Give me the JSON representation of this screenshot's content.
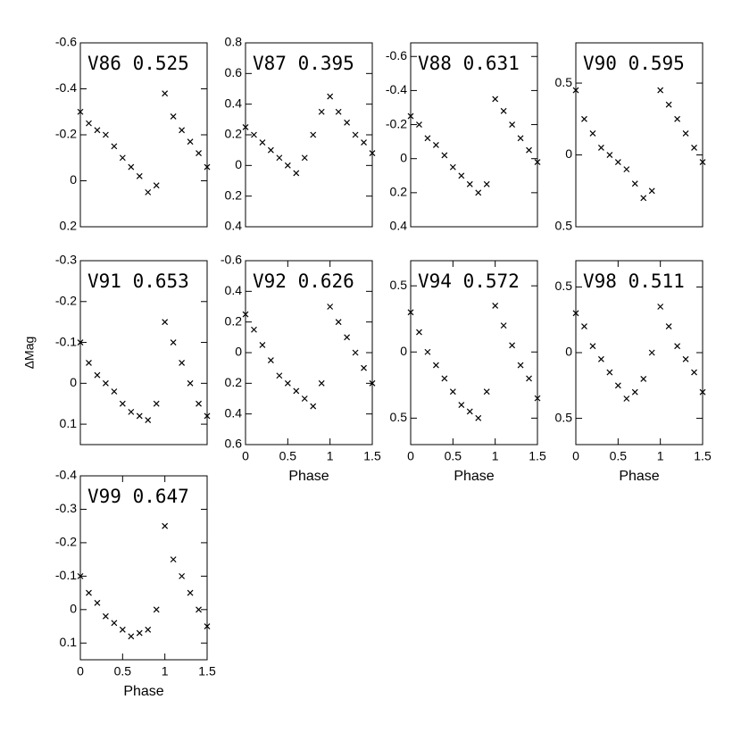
{
  "chart_data": [
    {
      "type": "scatter",
      "title": "V86 0.525",
      "marker_color": "#000000",
      "x": [
        0,
        0.1,
        0.2,
        0.3,
        0.4,
        0.5,
        0.6,
        0.7,
        0.8,
        0.9,
        1.0,
        1.1,
        1.2,
        1.3,
        1.4,
        1.5
      ],
      "values": [
        -0.3,
        -0.25,
        -0.22,
        -0.2,
        -0.15,
        -0.1,
        -0.06,
        -0.02,
        0.05,
        0.02,
        -0.38,
        -0.28,
        -0.22,
        -0.17,
        -0.12,
        -0.06
      ],
      "xlim": [
        0,
        1.5
      ],
      "ylim": [
        0.2,
        -0.6
      ],
      "yticks": [
        -0.6,
        -0.4,
        -0.2,
        0,
        0.2
      ]
    },
    {
      "type": "scatter",
      "title": "V87 0.395",
      "marker_color": "#000000",
      "x": [
        0,
        0.1,
        0.2,
        0.3,
        0.4,
        0.5,
        0.6,
        0.7,
        0.8,
        0.9,
        1.0,
        1.1,
        1.2,
        1.3,
        1.4,
        1.5
      ],
      "values": [
        -0.25,
        -0.2,
        -0.15,
        -0.1,
        -0.05,
        0,
        0.05,
        -0.05,
        -0.2,
        -0.35,
        -0.45,
        -0.35,
        -0.28,
        -0.2,
        -0.15,
        -0.08
      ],
      "xlim": [
        0,
        1.5
      ],
      "ylim": [
        0.4,
        -0.8
      ],
      "yticks": [
        {
          "value": -0.8,
          "label": "0.8"
        },
        {
          "value": -0.6,
          "label": "0.6"
        },
        {
          "value": -0.4,
          "label": "0.4"
        },
        {
          "value": -0.2,
          "label": "0.2"
        },
        0,
        0.2,
        0.4
      ]
    },
    {
      "type": "scatter",
      "title": "V88 0.631",
      "marker_color": "#000000",
      "x": [
        0,
        0.1,
        0.2,
        0.3,
        0.4,
        0.5,
        0.6,
        0.7,
        0.8,
        0.9,
        1.0,
        1.1,
        1.2,
        1.3,
        1.4,
        1.5
      ],
      "values": [
        -0.25,
        -0.2,
        -0.12,
        -0.08,
        -0.02,
        0.05,
        0.1,
        0.15,
        0.2,
        0.15,
        -0.35,
        -0.28,
        -0.2,
        -0.12,
        -0.05,
        0.02
      ],
      "xlim": [
        0,
        1.5
      ],
      "ylim": [
        0.4,
        -0.68
      ],
      "yticks": [
        -0.6,
        -0.4,
        -0.2,
        0,
        0.2,
        0.4
      ]
    },
    {
      "type": "scatter",
      "title": "V90 0.595",
      "marker_color": "#000000",
      "x": [
        0,
        0.1,
        0.2,
        0.3,
        0.4,
        0.5,
        0.6,
        0.7,
        0.8,
        0.9,
        1.0,
        1.1,
        1.2,
        1.3,
        1.4,
        1.5
      ],
      "values": [
        -0.45,
        -0.25,
        -0.15,
        -0.05,
        0,
        0.05,
        0.1,
        0.2,
        0.3,
        0.25,
        -0.45,
        -0.35,
        -0.25,
        -0.15,
        -0.05,
        0.05
      ],
      "xlim": [
        0,
        1.5
      ],
      "ylim": [
        0.5,
        -0.78
      ],
      "yticks": [
        {
          "value": -0.5,
          "label": "0.5"
        },
        0,
        0.5
      ]
    },
    {
      "type": "scatter",
      "title": "V91 0.653",
      "ylabel": "ΔMag",
      "marker_color": "#000000",
      "x": [
        0,
        0.1,
        0.2,
        0.3,
        0.4,
        0.5,
        0.6,
        0.7,
        0.8,
        0.9,
        1.0,
        1.1,
        1.2,
        1.3,
        1.4,
        1.5
      ],
      "values": [
        -0.1,
        -0.05,
        -0.02,
        0,
        0.02,
        0.05,
        0.07,
        0.08,
        0.09,
        0.05,
        -0.15,
        -0.1,
        -0.05,
        0,
        0.05,
        0.08
      ],
      "xlim": [
        0,
        1.5
      ],
      "ylim": [
        0.15,
        -0.3
      ],
      "yticks": [
        -0.3,
        -0.2,
        -0.1,
        0,
        0.1
      ]
    },
    {
      "type": "scatter",
      "title": "V92 0.626",
      "xlabel": "Phase",
      "marker_color": "#000000",
      "x": [
        0,
        0.1,
        0.2,
        0.3,
        0.4,
        0.5,
        0.6,
        0.7,
        0.8,
        0.9,
        1.0,
        1.1,
        1.2,
        1.3,
        1.4,
        1.5
      ],
      "values": [
        -0.25,
        -0.15,
        -0.05,
        0.05,
        0.15,
        0.2,
        0.25,
        0.3,
        0.35,
        0.2,
        -0.3,
        -0.2,
        -0.1,
        0,
        0.1,
        0.2
      ],
      "xlim": [
        0,
        1.5
      ],
      "xticks": [
        0,
        0.5,
        1,
        1.5
      ],
      "ylim": [
        0.6,
        -0.6
      ],
      "yticks": [
        -0.6,
        {
          "value": -0.4,
          "label": "0.4"
        },
        {
          "value": -0.2,
          "label": "0.2"
        },
        0,
        0.2,
        0.4,
        0.6
      ]
    },
    {
      "type": "scatter",
      "title": "V94 0.572",
      "xlabel": "Phase",
      "marker_color": "#000000",
      "x": [
        0,
        0.1,
        0.2,
        0.3,
        0.4,
        0.5,
        0.6,
        0.7,
        0.8,
        0.9,
        1.0,
        1.1,
        1.2,
        1.3,
        1.4,
        1.5
      ],
      "values": [
        -0.3,
        -0.15,
        0,
        0.1,
        0.2,
        0.3,
        0.4,
        0.45,
        0.5,
        0.3,
        -0.35,
        -0.2,
        -0.05,
        0.1,
        0.2,
        0.35
      ],
      "xlim": [
        0,
        1.5
      ],
      "xticks": [
        0,
        0.5,
        1,
        1.5
      ],
      "ylim": [
        0.7,
        -0.69
      ],
      "yticks": [
        {
          "value": -0.5,
          "label": "0.5"
        },
        0,
        0.5
      ]
    },
    {
      "type": "scatter",
      "title": "V98 0.511",
      "xlabel": "Phase",
      "marker_color": "#000000",
      "x": [
        0,
        0.1,
        0.2,
        0.3,
        0.4,
        0.5,
        0.6,
        0.7,
        0.8,
        0.9,
        1.0,
        1.1,
        1.2,
        1.3,
        1.4,
        1.5
      ],
      "values": [
        -0.3,
        -0.2,
        -0.05,
        0.05,
        0.15,
        0.25,
        0.35,
        0.3,
        0.2,
        0,
        -0.35,
        -0.2,
        -0.05,
        0.05,
        0.15,
        0.3
      ],
      "xlim": [
        0,
        1.5
      ],
      "xticks": [
        0,
        0.5,
        1,
        1.5
      ],
      "ylim": [
        0.7,
        -0.7
      ],
      "yticks": [
        {
          "value": -0.5,
          "label": "0.5"
        },
        0,
        0.5
      ]
    },
    {
      "type": "scatter",
      "title": "V99 0.647",
      "xlabel": "Phase",
      "marker_color": "#000000",
      "x": [
        0,
        0.1,
        0.2,
        0.3,
        0.4,
        0.5,
        0.6,
        0.7,
        0.8,
        0.9,
        1.0,
        1.1,
        1.2,
        1.3,
        1.4,
        1.5
      ],
      "values": [
        -0.1,
        -0.05,
        -0.02,
        0.02,
        0.04,
        0.06,
        0.08,
        0.07,
        0.06,
        0,
        -0.25,
        -0.15,
        -0.1,
        -0.05,
        0,
        0.05
      ],
      "xlim": [
        0,
        1.5
      ],
      "xticks": [
        0,
        0.5,
        1,
        1.5
      ],
      "ylim": [
        0.15,
        -0.4
      ],
      "yticks": [
        -0.4,
        -0.3,
        -0.2,
        -0.1,
        0,
        0.1
      ]
    }
  ]
}
